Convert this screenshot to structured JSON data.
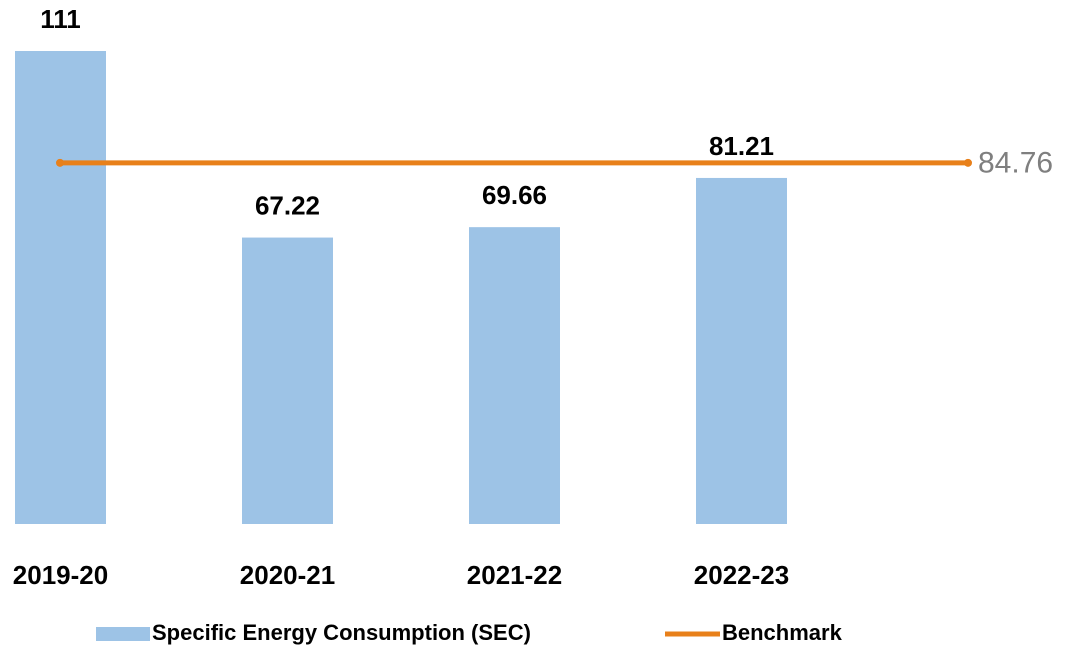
{
  "chart_data": {
    "type": "bar",
    "categories": [
      "2019-20",
      "2020-21",
      "2021-22",
      "2022-23"
    ],
    "series": [
      {
        "name": "Specific Energy Consumption (SEC)",
        "color": "#9dc3e6",
        "values": [
          111,
          67.22,
          69.66,
          81.21
        ]
      }
    ],
    "benchmark": {
      "name": "Benchmark",
      "color": "#e8801a",
      "value": 84.76
    }
  }
}
